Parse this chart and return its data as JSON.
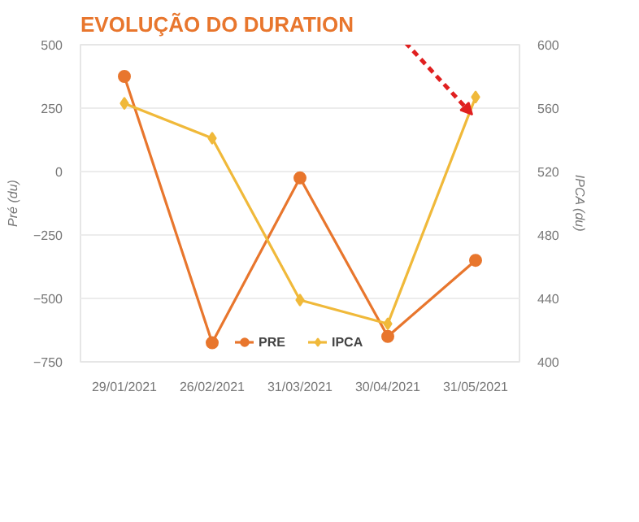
{
  "chart_data": {
    "type": "line",
    "title": "EVOLUÇÃO DO DURATION",
    "ylabel": "Pré (du)",
    "y2label": "IPCA (du)",
    "categories": [
      "29/01/2021",
      "26/02/2021",
      "31/03/2021",
      "30/04/2021",
      "31/05/2021"
    ],
    "series": [
      {
        "name": "PRE",
        "color": "#e8762d",
        "marker": "circle",
        "values": [
          375,
          -675,
          -25,
          -650,
          -350
        ]
      },
      {
        "name": "IPCA",
        "color": "#f0b93a",
        "marker": "diamond",
        "axis": "y2",
        "values": [
          563,
          541,
          439,
          424,
          567
        ]
      }
    ],
    "ylim": [
      -750,
      500
    ],
    "yticks": [
      -750,
      -500,
      -250,
      0,
      250,
      500
    ],
    "y2lim": [
      400,
      600
    ],
    "y2ticks": [
      400,
      440,
      480,
      520,
      560,
      600
    ],
    "grid": "y",
    "legend": "bottom"
  }
}
